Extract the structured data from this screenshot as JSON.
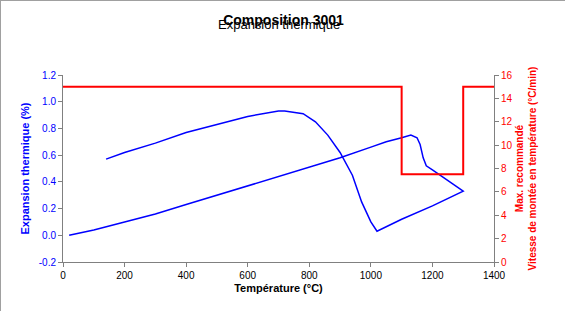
{
  "chart_data": {
    "type": "line",
    "title": "Composition 3001",
    "subtitle": "Expansion thermique",
    "x_label": "Température (°C)",
    "y_label": "Expansion thermique (%)",
    "y2_label": [
      "Max. recommandé",
      "Vitesse de montée en température (°C/min)"
    ],
    "xlim": [
      0,
      1400
    ],
    "xticks": [
      0,
      200,
      400,
      600,
      800,
      1000,
      1200,
      1400
    ],
    "ylim": [
      -0.2,
      1.2
    ],
    "yticks": [
      -0.2,
      {
        "value": 0,
        "label": "0.0"
      },
      0.2,
      0.4,
      0.6,
      0.8,
      {
        "value": 1,
        "label": "1.0"
      },
      1.2
    ],
    "y2lim": [
      0,
      16
    ],
    "y2ticks": [
      0,
      2,
      4,
      6,
      8,
      10,
      12,
      14,
      16
    ],
    "grid": false,
    "series": [
      {
        "color": "#0000ff",
        "axis": "y",
        "x": [
          20,
          100,
          200,
          300,
          400,
          500,
          600,
          700,
          800,
          900,
          1000,
          1050,
          1100,
          1130,
          1150,
          1160,
          1170,
          1180,
          1200,
          1250,
          1300,
          1200,
          1100,
          1020,
          1000,
          970,
          940,
          900,
          860,
          820,
          780,
          720,
          700,
          600,
          500,
          400,
          300,
          200,
          140
        ],
        "values": [
          0,
          0.04,
          0.1,
          0.16,
          0.23,
          0.3,
          0.37,
          0.44,
          0.51,
          0.58,
          0.66,
          0.7,
          0.73,
          0.75,
          0.73,
          0.68,
          0.58,
          0.52,
          0.49,
          0.41,
          0.33,
          0.22,
          0.12,
          0.03,
          0.1,
          0.25,
          0.45,
          0.62,
          0.75,
          0.85,
          0.91,
          0.93,
          0.93,
          0.89,
          0.83,
          0.77,
          0.69,
          0.62,
          0.57
        ]
      },
      {
        "color": "#ff0000",
        "axis": "y2",
        "line_style": "step",
        "x": [
          0,
          1100,
          1100,
          1300,
          1300,
          1400
        ],
        "values": [
          15,
          15,
          7.5,
          7.5,
          15,
          15
        ]
      }
    ]
  }
}
